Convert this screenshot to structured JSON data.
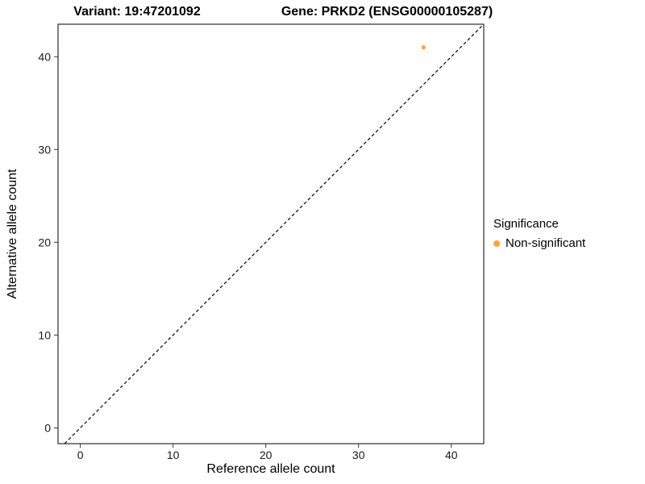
{
  "chart_data": {
    "type": "scatter",
    "title_left": "Variant: 19:47201092",
    "title_right": "Gene: PRKD2 (ENSG00000105287)",
    "xlabel": "Reference allele count",
    "ylabel": "Alternative allele count",
    "xlim": [
      -2.4,
      43.5
    ],
    "ylim": [
      -1.7,
      43.5
    ],
    "xticks": [
      0,
      10,
      20,
      30,
      40
    ],
    "yticks": [
      0,
      10,
      20,
      30,
      40
    ],
    "grid": false,
    "panel_border": true,
    "reference_line": {
      "kind": "identity",
      "style": "dashed",
      "color": "#000000"
    },
    "series": [
      {
        "name": "Non-significant",
        "color": "#FFA33B",
        "points": [
          {
            "x": 37,
            "y": 41
          }
        ]
      }
    ],
    "legend": {
      "position": "right",
      "title": "Significance",
      "entries": [
        {
          "label": "Non-significant",
          "color": "#FFA33B"
        }
      ]
    }
  }
}
